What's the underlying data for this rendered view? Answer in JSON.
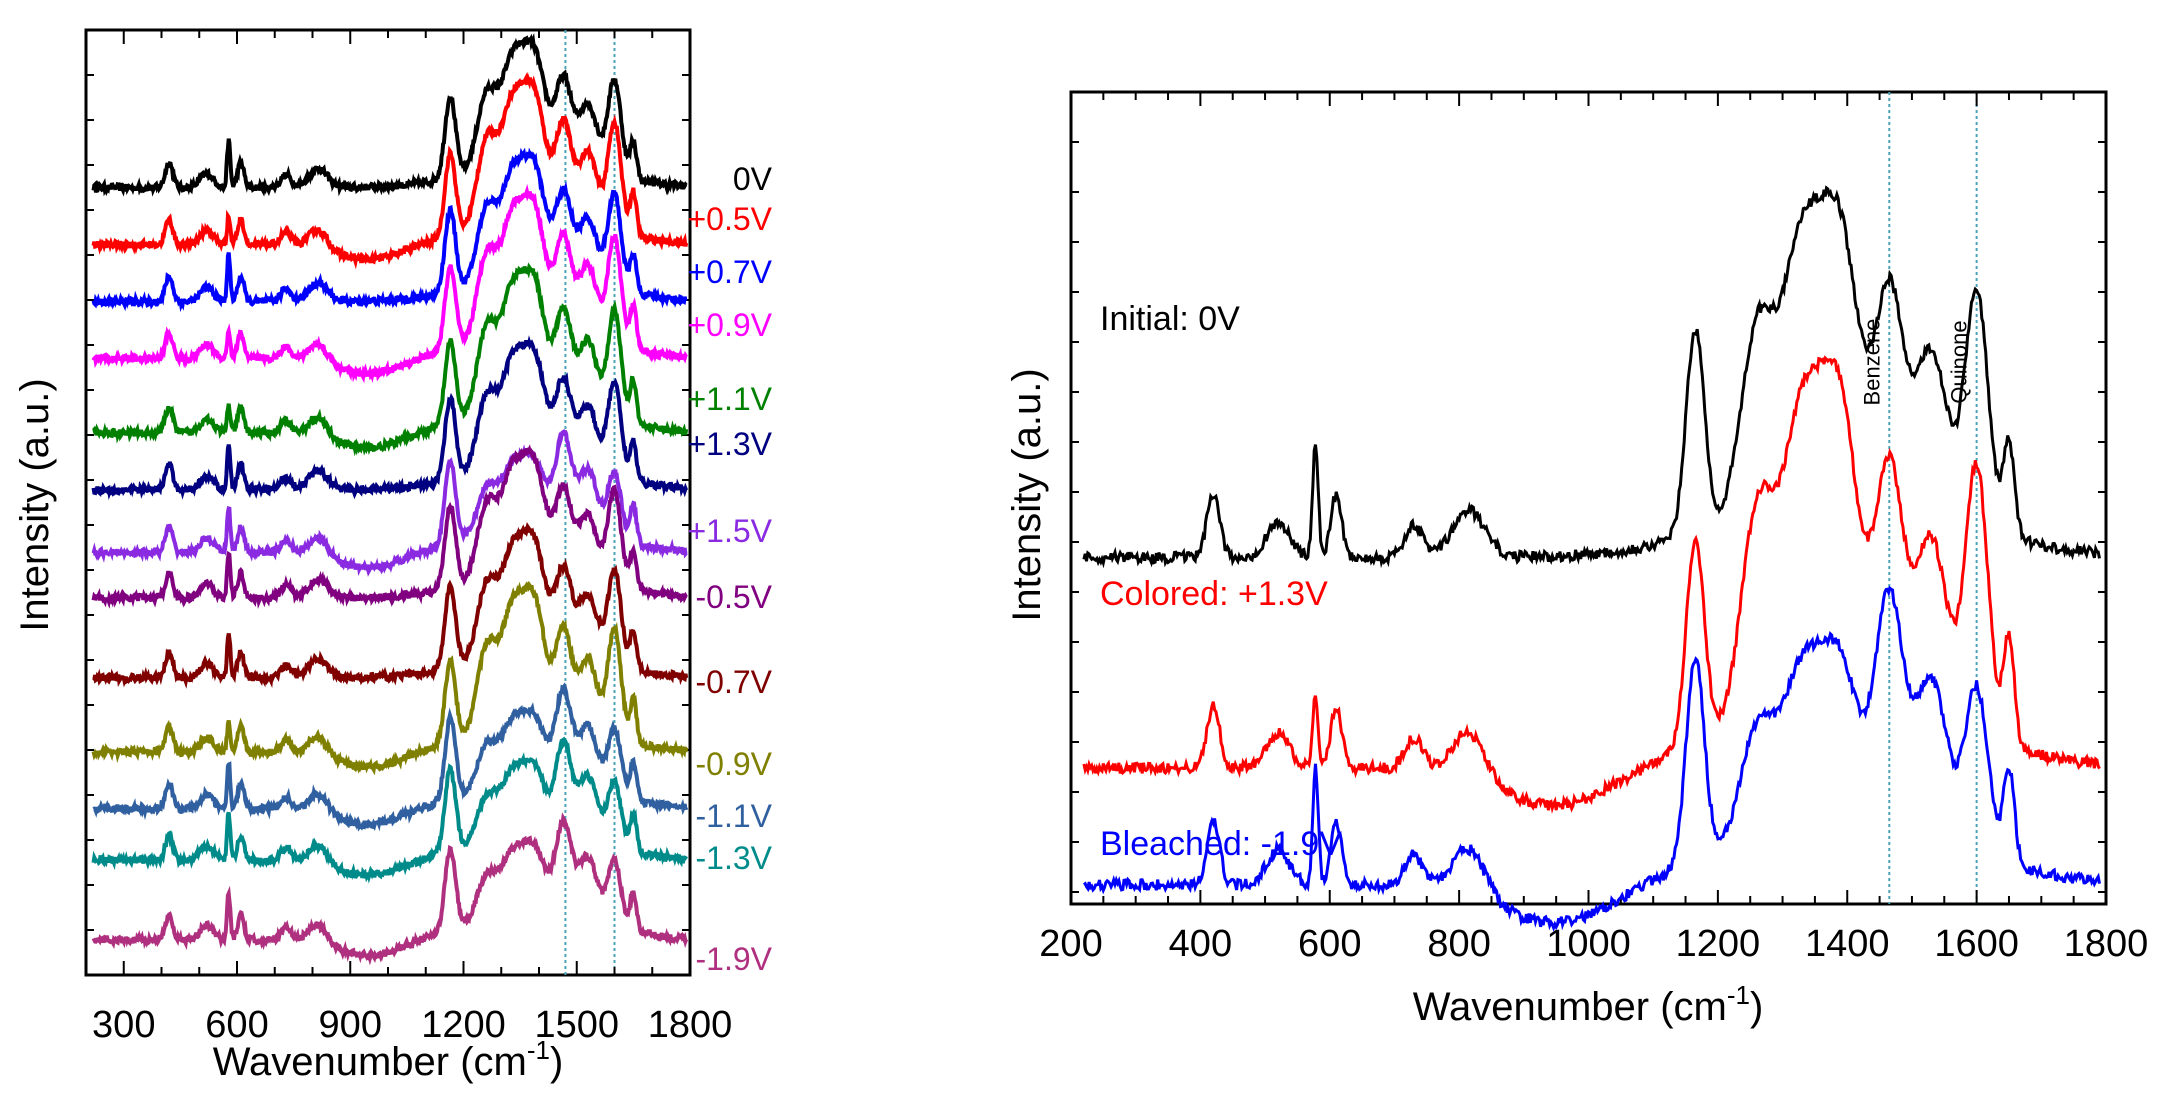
{
  "chart_data": [
    {
      "type": "line",
      "panel": "left",
      "xlabel": "Wavenumber (cm",
      "xlabel_sup": "-1",
      "xlabel_close": ")",
      "ylabel": "Intensity (a.u.)",
      "xlim": [
        200,
        1800
      ],
      "xticks": [
        300,
        600,
        900,
        1200,
        1500,
        1800
      ],
      "reference_lines": [
        1470,
        1600
      ],
      "series": [
        {
          "name": "0V",
          "color": "#000000",
          "offset": 13.2
        },
        {
          "name": "+0.5V",
          "color": "#ff0000",
          "offset": 12.2
        },
        {
          "name": "+0.7V",
          "color": "#0000ff",
          "offset": 11.2
        },
        {
          "name": "+0.9V",
          "color": "#ff00ff",
          "offset": 10.2
        },
        {
          "name": "+1.1V",
          "color": "#008000",
          "offset": 8.9
        },
        {
          "name": "+1.3V",
          "color": "#000080",
          "offset": 7.9
        },
        {
          "name": "+1.5V",
          "color": "#8a2be2",
          "offset": 6.8
        },
        {
          "name": "-0.5V",
          "color": "#800080",
          "offset": 6.0
        },
        {
          "name": "-0.7V",
          "color": "#800000",
          "offset": 4.6
        },
        {
          "name": "-0.9V",
          "color": "#808000",
          "offset": 3.3
        },
        {
          "name": "-1.1V",
          "color": "#3060a0",
          "offset": 2.3
        },
        {
          "name": "-1.3V",
          "color": "#008b8b",
          "offset": 1.4
        },
        {
          "name": "-1.9V",
          "color": "#b03080",
          "offset": 0.0
        }
      ]
    },
    {
      "type": "line",
      "panel": "right",
      "xlabel": "Wavenumber (cm",
      "xlabel_sup": "-1",
      "xlabel_close": ")",
      "ylabel": "Intensity (a.u.)",
      "xlim": [
        200,
        1800
      ],
      "xticks": [
        200,
        400,
        600,
        800,
        1000,
        1200,
        1400,
        1600,
        1800
      ],
      "reference_lines": [
        {
          "x": 1465,
          "label": "Benzene"
        },
        {
          "x": 1600,
          "label": "Quinone"
        }
      ],
      "series": [
        {
          "name": "Initial: 0V",
          "color": "#000000",
          "offset": 4.2
        },
        {
          "name": "Colored: +1.3V",
          "color": "#ff0000",
          "offset": 1.5
        },
        {
          "name": "Bleached: -1.9V",
          "color": "#0000ff",
          "offset": 0.0
        }
      ]
    }
  ]
}
